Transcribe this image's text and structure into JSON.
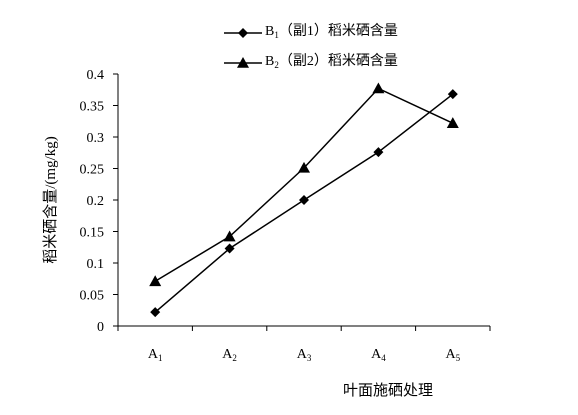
{
  "chart_data": {
    "type": "line",
    "categories": [
      {
        "main": "A",
        "sub": "1"
      },
      {
        "main": "A",
        "sub": "2"
      },
      {
        "main": "A",
        "sub": "3"
      },
      {
        "main": "A",
        "sub": "4"
      },
      {
        "main": "A",
        "sub": "5"
      }
    ],
    "series": [
      {
        "main": "B",
        "sub": "1",
        "suffix": "（副1）稻米硒含量",
        "marker": "diamond",
        "values": [
          0.022,
          0.123,
          0.2,
          0.276,
          0.368
        ]
      },
      {
        "main": "B",
        "sub": "2",
        "suffix": "（副2）稻米硒含量",
        "marker": "triangle",
        "values": [
          0.071,
          0.142,
          0.251,
          0.377,
          0.322
        ]
      }
    ],
    "xlabel": "叶面施硒处理",
    "ylabel": "稻米硒含量/(mg/kg)",
    "ylim": [
      0,
      0.4
    ],
    "yticks": [
      "0",
      "0.05",
      "0.1",
      "0.15",
      "0.2",
      "0.25",
      "0.3",
      "0.35",
      "0.4"
    ],
    "grid": false,
    "legend_position": "top-right",
    "colors": {
      "line": "#000000",
      "marker": "#000000"
    }
  }
}
